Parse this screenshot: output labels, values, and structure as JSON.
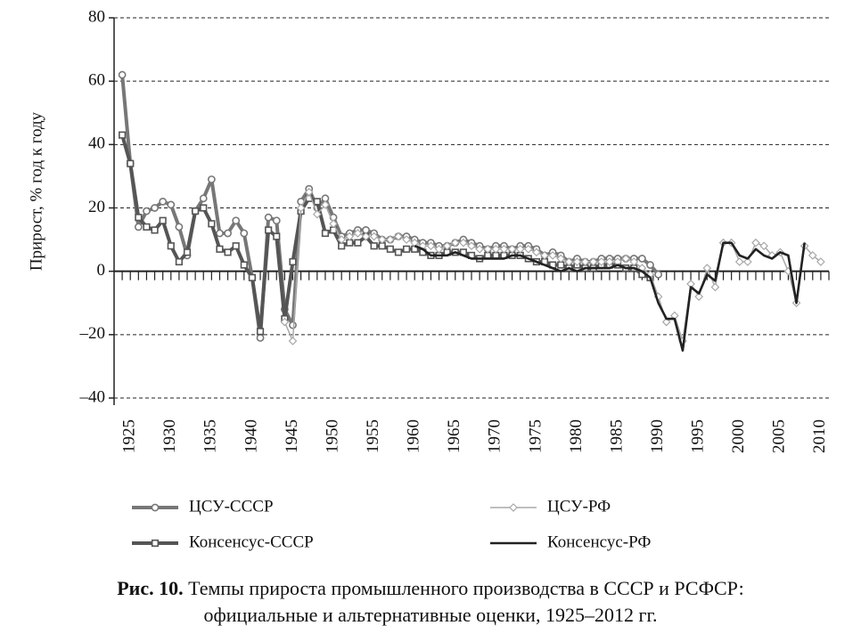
{
  "chart_data": {
    "type": "line",
    "y_label": "Прирост, % год к году",
    "x": [
      1924,
      1925,
      1926,
      1927,
      1928,
      1929,
      1930,
      1931,
      1932,
      1933,
      1934,
      1935,
      1936,
      1937,
      1938,
      1939,
      1940,
      1941,
      1942,
      1943,
      1944,
      1945,
      1946,
      1947,
      1948,
      1949,
      1950,
      1951,
      1952,
      1953,
      1954,
      1955,
      1956,
      1957,
      1958,
      1959,
      1960,
      1961,
      1962,
      1963,
      1964,
      1965,
      1966,
      1967,
      1968,
      1969,
      1970,
      1971,
      1972,
      1973,
      1974,
      1975,
      1976,
      1977,
      1978,
      1979,
      1980,
      1981,
      1982,
      1983,
      1984,
      1985,
      1986,
      1987,
      1988,
      1989,
      1990,
      1991,
      1992,
      1993,
      1994,
      1995,
      1996,
      1997,
      1998,
      1999,
      2000,
      2001,
      2002,
      2003,
      2004,
      2005,
      2006,
      2007,
      2008,
      2009,
      2010,
      2011
    ],
    "xlim": [
      1923,
      2011
    ],
    "xticks": [
      1925,
      1930,
      1935,
      1940,
      1945,
      1950,
      1955,
      1960,
      1965,
      1970,
      1975,
      1980,
      1985,
      1990,
      1995,
      2000,
      2005,
      2010
    ],
    "ylim": [
      -40,
      80
    ],
    "yticks": [
      {
        "value": -40,
        "label": "–40"
      },
      {
        "value": -20,
        "label": "–20"
      },
      0,
      20,
      40,
      60,
      80
    ],
    "grid": true,
    "series": [
      {
        "name": "ЦСУ-СССР",
        "color": "#777777",
        "marker": "circle",
        "values": [
          62,
          34,
          14,
          19,
          20,
          22,
          21,
          14,
          5,
          19,
          23,
          29,
          12,
          12,
          16,
          12,
          -2,
          -21,
          17,
          16,
          -12,
          -17,
          22,
          26,
          20,
          23,
          17,
          11,
          12,
          13,
          13,
          12,
          10,
          10,
          11,
          11,
          10,
          9,
          9,
          8,
          8,
          9,
          10,
          9,
          8,
          7,
          8,
          8,
          7,
          8,
          8,
          7,
          5,
          6,
          5,
          3,
          4,
          3,
          3,
          4,
          4,
          4,
          4,
          4,
          4,
          2,
          -1,
          null,
          null,
          null,
          null,
          null,
          null,
          null,
          null,
          null,
          null,
          null,
          null,
          null,
          null,
          null,
          null,
          null,
          null,
          null,
          null,
          null
        ]
      },
      {
        "name": "Консенсус-СССР",
        "color": "#555555",
        "marker": "square",
        "values": [
          43,
          34,
          17,
          14,
          13,
          16,
          8,
          3,
          6,
          19,
          20,
          15,
          7,
          6,
          8,
          2,
          -2,
          -19,
          13,
          11,
          -15,
          3,
          19,
          23,
          22,
          12,
          13,
          8,
          9,
          9,
          11,
          8,
          8,
          7,
          6,
          7,
          7,
          6,
          5,
          5,
          6,
          6,
          6,
          5,
          4,
          5,
          5,
          5,
          5,
          5,
          4,
          3,
          3,
          2,
          2,
          1,
          2,
          1,
          1,
          2,
          2,
          2,
          1,
          1,
          -1,
          -2,
          null,
          null,
          null,
          null,
          null,
          null,
          null,
          null,
          null,
          null,
          null,
          null,
          null,
          null,
          null,
          null,
          null,
          null,
          null,
          null,
          null,
          null
        ]
      },
      {
        "name": "ЦСУ-РФ",
        "color": "#a8a8a8",
        "marker": "diamond",
        "values": [
          null,
          null,
          null,
          null,
          null,
          null,
          null,
          null,
          null,
          null,
          null,
          null,
          null,
          null,
          null,
          null,
          null,
          null,
          null,
          null,
          -16,
          -22,
          20,
          25,
          18,
          21,
          15,
          10,
          11,
          12,
          11,
          11,
          10,
          10,
          11,
          10,
          9,
          8,
          8,
          7,
          8,
          9,
          9,
          8,
          7,
          7,
          7,
          7,
          7,
          7,
          7,
          6,
          5,
          5,
          4,
          3,
          3,
          3,
          3,
          3,
          3,
          3,
          4,
          3,
          1,
          -1,
          -8,
          -16,
          -14,
          -22,
          -4,
          -8,
          1,
          -5,
          9,
          9,
          3,
          3,
          9,
          8,
          5,
          6,
          0,
          -10,
          8,
          5,
          3,
          null
        ]
      },
      {
        "name": "Консенсус-РФ",
        "color": "#222222",
        "values": [
          null,
          null,
          null,
          null,
          null,
          null,
          null,
          null,
          null,
          null,
          null,
          null,
          null,
          null,
          null,
          null,
          null,
          null,
          null,
          null,
          null,
          null,
          null,
          null,
          null,
          null,
          null,
          null,
          null,
          null,
          null,
          null,
          null,
          null,
          null,
          null,
          8,
          7,
          5,
          5,
          5,
          6,
          5,
          4,
          4,
          4,
          4,
          4,
          5,
          5,
          4,
          3,
          2,
          1,
          0,
          1,
          0,
          1,
          1,
          1,
          1,
          2,
          1,
          1,
          0,
          -2,
          -10,
          -15,
          -15,
          -25,
          -5,
          -7,
          -1,
          -3,
          9,
          9,
          5,
          4,
          7,
          5,
          4,
          6,
          5,
          -10,
          9,
          null,
          null,
          null
        ]
      }
    ]
  },
  "caption": {
    "label": "Рис. 10.",
    "line1": "Темпы прироста промышленного производства в СССР и РСФСР:",
    "line2": "официальные и альтернативные оценки, 1925–2012 гг."
  }
}
